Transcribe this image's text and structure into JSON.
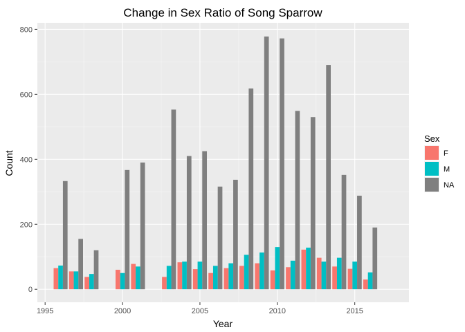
{
  "chart_data": {
    "type": "bar",
    "title": "Change in Sex Ratio of Song Sparrow",
    "xlabel": "Year",
    "ylabel": "Count",
    "xlim": [
      1994.5,
      2018.5
    ],
    "ylim": [
      -40,
      820
    ],
    "x_ticks": [
      1995,
      2000,
      2005,
      2010,
      2015
    ],
    "y_ticks": [
      0,
      200,
      400,
      600,
      800
    ],
    "grid": true,
    "legend": {
      "title": "Sex",
      "position": "right"
    },
    "x": [
      1996,
      1997,
      1998,
      2000,
      2001,
      2003,
      2004,
      2005,
      2006,
      2007,
      2008,
      2009,
      2010,
      2011,
      2012,
      2013,
      2014,
      2015,
      2016
    ],
    "series": [
      {
        "name": "F",
        "color": "#F8766D",
        "values": [
          65,
          55,
          38,
          60,
          78,
          38,
          83,
          62,
          50,
          65,
          72,
          80,
          58,
          68,
          122,
          97,
          70,
          63,
          30
        ]
      },
      {
        "name": "M",
        "color": "#00BFC4",
        "values": [
          73,
          55,
          47,
          50,
          70,
          72,
          85,
          85,
          72,
          80,
          106,
          113,
          130,
          88,
          128,
          85,
          97,
          85,
          52
        ]
      },
      {
        "name": "NA",
        "color": "#7F7F7F",
        "values": [
          333,
          155,
          120,
          367,
          390,
          553,
          410,
          425,
          316,
          337,
          618,
          778,
          772,
          549,
          530,
          690,
          352,
          288,
          190
        ]
      }
    ]
  }
}
